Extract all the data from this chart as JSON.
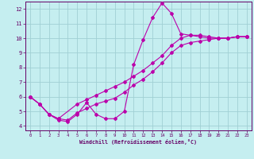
{
  "xlabel": "Windchill (Refroidissement éolien,°C)",
  "bg_color": "#c5eef0",
  "grid_color": "#a0d0d4",
  "line_color": "#bb00aa",
  "xlim": [
    -0.5,
    23.5
  ],
  "ylim": [
    3.7,
    12.5
  ],
  "xticks": [
    0,
    1,
    2,
    3,
    4,
    5,
    6,
    7,
    8,
    9,
    10,
    11,
    12,
    13,
    14,
    15,
    16,
    17,
    18,
    19,
    20,
    21,
    22,
    23
  ],
  "yticks": [
    4,
    5,
    6,
    7,
    8,
    9,
    10,
    11,
    12
  ],
  "line1_x": [
    0,
    1,
    2,
    3,
    4,
    5,
    6,
    7,
    8,
    9,
    10,
    11,
    12,
    13,
    14,
    15,
    16,
    17,
    18,
    19,
    20,
    21,
    22,
    23
  ],
  "line1_y": [
    6.0,
    5.5,
    4.8,
    4.4,
    4.3,
    4.8,
    5.6,
    4.8,
    4.5,
    4.5,
    5.0,
    8.2,
    9.9,
    11.4,
    12.4,
    11.7,
    10.3,
    10.2,
    10.1,
    10.0,
    10.0,
    10.0,
    10.1,
    10.1
  ],
  "line2_x": [
    0,
    1,
    2,
    3,
    4,
    5,
    6,
    7,
    8,
    9,
    10,
    11,
    12,
    13,
    14,
    15,
    16,
    17,
    18,
    19,
    20,
    21,
    22,
    23
  ],
  "line2_y": [
    6.0,
    5.5,
    4.8,
    4.5,
    4.4,
    4.9,
    5.2,
    5.5,
    5.7,
    5.9,
    6.3,
    6.8,
    7.2,
    7.7,
    8.3,
    9.0,
    9.5,
    9.7,
    9.8,
    9.9,
    10.0,
    10.0,
    10.1,
    10.1
  ],
  "line3_x": [
    0,
    1,
    2,
    3,
    5,
    6,
    7,
    8,
    9,
    10,
    11,
    12,
    13,
    14,
    15,
    16,
    17,
    18,
    19,
    20,
    21,
    22,
    23
  ],
  "line3_y": [
    6.0,
    5.5,
    4.8,
    4.5,
    5.5,
    5.8,
    6.1,
    6.4,
    6.7,
    7.0,
    7.4,
    7.8,
    8.3,
    8.8,
    9.5,
    10.0,
    10.2,
    10.2,
    10.1,
    10.0,
    10.0,
    10.1,
    10.1
  ]
}
